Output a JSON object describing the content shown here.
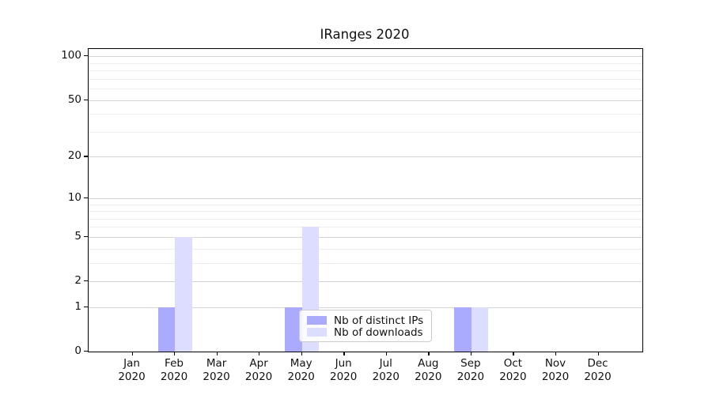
{
  "chart_data": {
    "type": "bar",
    "title": "IRanges 2020",
    "categories": [
      "Jan",
      "Feb",
      "Mar",
      "Apr",
      "May",
      "Jun",
      "Jul",
      "Aug",
      "Sep",
      "Oct",
      "Nov",
      "Dec"
    ],
    "category_year_label": "2020",
    "series": [
      {
        "name": "Nb of distinct IPs",
        "color": "#aaaaff",
        "values": [
          0,
          1,
          0,
          0,
          1,
          0,
          0,
          0,
          1,
          0,
          0,
          0
        ]
      },
      {
        "name": "Nb of downloads",
        "color": "#ddddff",
        "values": [
          0,
          5,
          0,
          0,
          6,
          0,
          0,
          0,
          1,
          0,
          0,
          0
        ]
      }
    ],
    "xlabel": "",
    "ylabel": "",
    "yticks": [
      0,
      1,
      2,
      5,
      10,
      20,
      50,
      100
    ],
    "minor_gridlines": [
      3,
      4,
      6,
      7,
      8,
      9,
      30,
      40,
      60,
      70,
      80,
      90
    ],
    "scale": "log1p",
    "ylim": [
      0,
      112
    ],
    "grid": "horizontal",
    "legend_position": "lower-center",
    "axis_color": "#000000",
    "major_grid_color": "#d4d4d4",
    "minor_grid_color": "#ededed",
    "legend_border_color": "#cccccc"
  }
}
